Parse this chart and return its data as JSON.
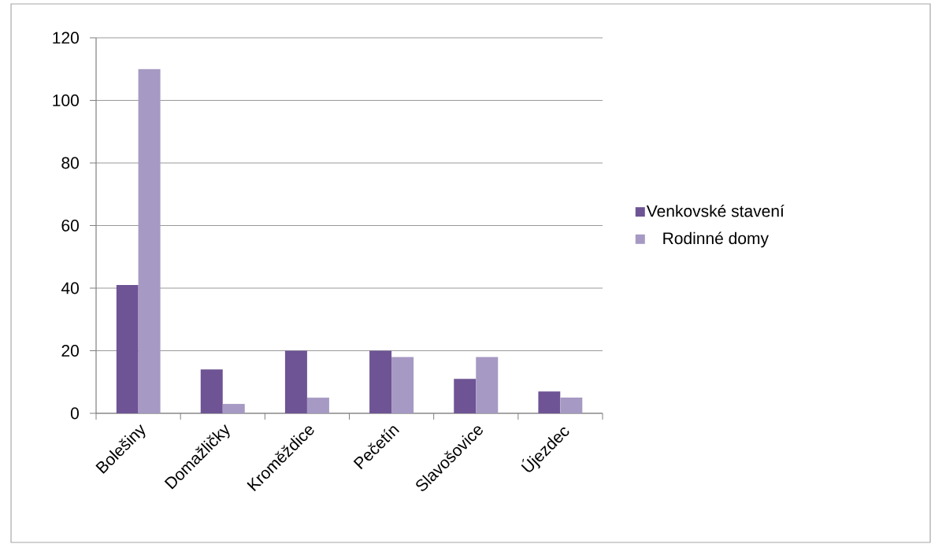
{
  "chart_data": {
    "type": "bar",
    "categories": [
      "Bolešiny",
      "Domažličky",
      "Kroměždice",
      "Pečetín",
      "Slavošovice",
      "Újezdec"
    ],
    "series": [
      {
        "name": "Venkovské stavení",
        "color": "#6e5494",
        "values": [
          41,
          14,
          20,
          20,
          11,
          7
        ]
      },
      {
        "name": "Rodinné domy",
        "color": "#a699c3",
        "values": [
          110,
          3,
          5,
          18,
          18,
          5
        ]
      }
    ],
    "ylim": [
      0,
      120
    ],
    "yticks": [
      0,
      20,
      40,
      60,
      80,
      100,
      120
    ],
    "grid": "y",
    "legend": "right"
  }
}
